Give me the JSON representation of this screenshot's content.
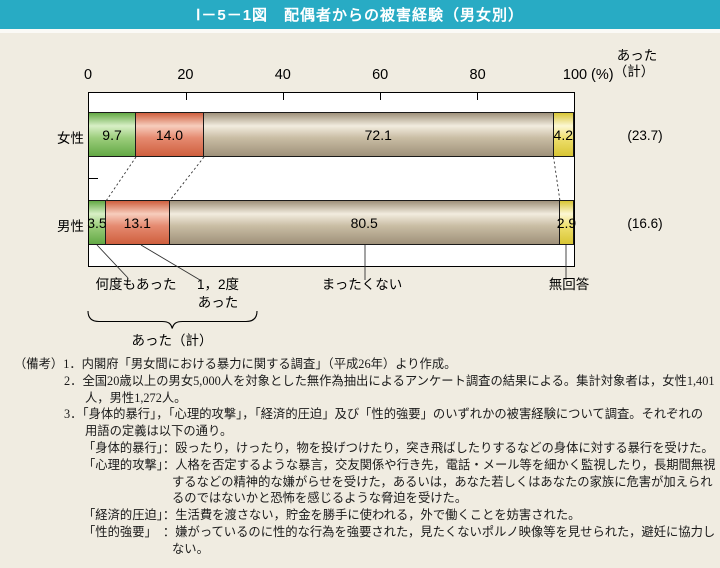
{
  "title": "Ⅰ－5－1図　配偶者からの被害経験（男女別）",
  "axis": {
    "ticks": [
      "0",
      "20",
      "40",
      "60",
      "80",
      "100"
    ],
    "unit": "(%)",
    "min": 0,
    "max": 100
  },
  "right_header": {
    "line1": "あった",
    "line2": "（計）"
  },
  "legend_categories": [
    {
      "label": "何度もあった",
      "color": "#9ccd7c",
      "color_light": "#d8efc6",
      "color_dark": "#63a945"
    },
    {
      "label": "1，2度あった",
      "line1": "1，2度",
      "line2": "あった",
      "color": "#e58a70",
      "color_light": "#f7cdbd",
      "color_dark": "#cf5f3e"
    },
    {
      "label": "まったくない",
      "color": "#c9bda4",
      "color_light": "#f2ecdf",
      "color_dark": "#9f917a"
    },
    {
      "label": "無回答",
      "color": "#efe06e",
      "color_light": "#fcf7d4",
      "color_dark": "#d8c534"
    }
  ],
  "brace_label": "あった（計）",
  "rows": [
    {
      "label": "女性",
      "values": [
        9.7,
        14.0,
        72.1,
        4.2
      ],
      "value_labels": [
        "9.7",
        "14.0",
        "72.1",
        "4.2"
      ],
      "total": "(23.7)"
    },
    {
      "label": "男性",
      "values": [
        3.5,
        13.1,
        80.5,
        2.9
      ],
      "value_labels": [
        "3.5",
        "13.1",
        "80.5",
        "2.9"
      ],
      "total": "(16.6)"
    }
  ],
  "colors": {
    "title_bar": "#28abc4",
    "page_bg": "#f0ece1",
    "plot_bg": "#ffffff"
  },
  "notes": [
    {
      "lvl": "lvl0",
      "text": "（備考）1．内閣府「男女間における暴力に関する調査」（平成26年）より作成。"
    },
    {
      "lvl": "lvl1",
      "text": "2．全国20歳以上の男女5,000人を対象とした無作為抽出によるアンケート調査の結果による。集計対象者は，女性1,401"
    },
    {
      "lvl": "lvl2",
      "text": "人，男性1,272人。"
    },
    {
      "lvl": "lvl1",
      "text": "3．「身体的暴行」，「心理的攻撃」，「経済的圧迫」及び「性的強要」のいずれかの被害経験について調査。それぞれの"
    },
    {
      "lvl": "lvl2",
      "text": "用語の定義は以下の通り。"
    },
    {
      "lvl": "lvl3",
      "text": "「身体的暴行」：殴ったり，けったり，物を投げつけたり，突き飛ばしたりするなどの身体に対する暴行を受けた。"
    },
    {
      "lvl": "lvl3",
      "text": "「心理的攻撃」：人格を否定するような暴言，交友関係や行き先，電話・メール等を細かく監視したり，長期間無視"
    },
    {
      "lvl": "lvl4",
      "text": "するなどの精神的な嫌がらせを受けた，あるいは，あなた若しくはあなたの家族に危害が加えられ"
    },
    {
      "lvl": "lvl4",
      "text": "るのではないかと恐怖を感じるような脅迫を受けた。"
    },
    {
      "lvl": "lvl3",
      "text": "「経済的圧迫」：生活費を渡さない，貯金を勝手に使われる，外で働くことを妨害された。"
    },
    {
      "lvl": "lvl3",
      "text": "「性的強要」　：嫌がっているのに性的な行為を強要された，見たくないポルノ映像等を見せられた，避妊に協力し"
    },
    {
      "lvl": "lvl4",
      "text": "ない。"
    }
  ],
  "chart_data": {
    "type": "bar",
    "stacked": true,
    "orientation": "horizontal",
    "title": "Ⅰ－5－1図　配偶者からの被害経験（男女別）",
    "categories": [
      "女性",
      "男性"
    ],
    "series": [
      {
        "name": "何度もあった",
        "values": [
          9.7,
          3.5
        ]
      },
      {
        "name": "1，2度あった",
        "values": [
          14.0,
          13.1
        ]
      },
      {
        "name": "まったくない",
        "values": [
          72.1,
          80.5
        ]
      },
      {
        "name": "無回答",
        "values": [
          4.2,
          2.9
        ]
      }
    ],
    "totals_atta_kei": {
      "女性": 23.7,
      "男性": 16.6
    },
    "xlabel": "(%)",
    "xlim": [
      0,
      100
    ],
    "legend_position": "below-bars",
    "grid": false
  }
}
